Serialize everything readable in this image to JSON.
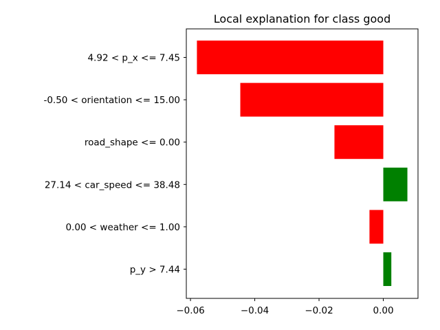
{
  "chart_data": {
    "type": "bar",
    "orientation": "horizontal",
    "title": "Local explanation for class good",
    "xlabel": "",
    "ylabel": "",
    "categories": [
      "4.92 < p_x <= 7.45",
      "-0.50 < orientation <= 15.00",
      "road_shape <= 0.00",
      "27.14 < car_speed <= 38.48",
      "0.00 < weather <= 1.00",
      "p_y > 7.44"
    ],
    "values": [
      -0.058,
      -0.0445,
      -0.0152,
      0.0075,
      -0.0043,
      0.0025
    ],
    "xlim": [
      -0.0613,
      0.0108
    ],
    "xticks": [
      -0.06,
      -0.04,
      -0.02,
      0.0
    ],
    "xtick_labels": [
      "−0.06",
      "−0.04",
      "−0.02",
      "0.00"
    ],
    "colors": {
      "positive": "#008000",
      "negative": "#ff0000"
    },
    "grid": false,
    "legend": "none"
  }
}
